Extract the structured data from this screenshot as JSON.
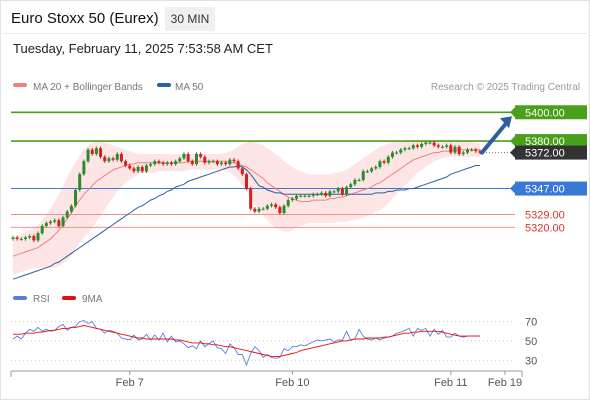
{
  "header": {
    "title": "Euro Stoxx 50 (Eurex)",
    "interval": "30 MIN",
    "datetime": "Tuesday, February 11, 2025 7:53:58 AM CET"
  },
  "legend": {
    "ma20_bb": "MA 20 + Bollinger Bands",
    "ma50": "MA 50",
    "copyright": "Research © 2025 Trading Central"
  },
  "colors": {
    "ma20": "#f08080",
    "bollinger_fill": "#fde0e0",
    "ma50": "#2f5f9e",
    "candle_up": "#2b8a2b",
    "candle_down": "#d02020",
    "resistance": "#4aa01a",
    "support": "#3a78d8",
    "pivot": "#f09090",
    "price_tag": "#333333",
    "arrow": "#2f5f9e",
    "rsi": "#5c7fd6",
    "rsi_ma": "#e01010"
  },
  "chart_data": [
    {
      "type": "candlestick",
      "title": "Euro Stoxx 50 (Eurex)",
      "ylim": [
        5280,
        5412
      ],
      "x_ticks": [
        "Feb 7",
        "Feb 10",
        "Feb 11",
        "Feb 19"
      ],
      "levels": [
        {
          "value": 5400.0,
          "label": "5400.00",
          "kind": "resistance"
        },
        {
          "value": 5380.0,
          "label": "5380.00",
          "kind": "resistance"
        },
        {
          "value": 5372.0,
          "label": "5372.00",
          "kind": "current"
        },
        {
          "value": 5347.0,
          "label": "5347.00",
          "kind": "support"
        },
        {
          "value": 5329.0,
          "label": "5329.00",
          "kind": "pivot"
        },
        {
          "value": 5320.0,
          "label": "5320.00",
          "kind": "pivot"
        }
      ],
      "forecast_target": 5400,
      "close": [
        5313,
        5312,
        5312,
        5313,
        5314,
        5311,
        5316,
        5321,
        5323,
        5324,
        5325,
        5321,
        5327,
        5331,
        5335,
        5346,
        5357,
        5366,
        5374,
        5371,
        5375,
        5369,
        5366,
        5368,
        5367,
        5371,
        5366,
        5363,
        5361,
        5359,
        5362,
        5359,
        5363,
        5364,
        5366,
        5365,
        5364,
        5365,
        5364,
        5366,
        5368,
        5371,
        5366,
        5364,
        5371,
        5369,
        5365,
        5366,
        5366,
        5364,
        5365,
        5364,
        5367,
        5366,
        5361,
        5357,
        5347,
        5333,
        5331,
        5333,
        5333,
        5335,
        5336,
        5334,
        5330,
        5335,
        5339,
        5340,
        5342,
        5342,
        5342,
        5342,
        5343,
        5343,
        5344,
        5342,
        5345,
        5345,
        5347,
        5343,
        5348,
        5350,
        5353,
        5353,
        5359,
        5359,
        5361,
        5362,
        5366,
        5365,
        5369,
        5372,
        5372,
        5374,
        5375,
        5375,
        5377,
        5376,
        5378,
        5379,
        5379,
        5377,
        5376,
        5376,
        5377,
        5372,
        5376,
        5371,
        5372,
        5374,
        5374,
        5373,
        5372
      ],
      "ma20": [
        5300,
        5301,
        5302,
        5303,
        5304,
        5305,
        5306,
        5308,
        5310,
        5312,
        5315,
        5318,
        5322,
        5326,
        5330,
        5335,
        5339,
        5343,
        5346,
        5349,
        5352,
        5354,
        5356,
        5358,
        5360,
        5361,
        5362,
        5363,
        5364,
        5364,
        5365,
        5365,
        5365,
        5365,
        5365,
        5365,
        5365,
        5365,
        5365,
        5365,
        5365,
        5365,
        5366,
        5366,
        5366,
        5366,
        5366,
        5366,
        5366,
        5366,
        5366,
        5366,
        5365,
        5365,
        5364,
        5363,
        5362,
        5360,
        5358,
        5356,
        5354,
        5351,
        5349,
        5347,
        5345,
        5343,
        5341,
        5340,
        5339,
        5338,
        5338,
        5338,
        5339,
        5339,
        5339,
        5339,
        5340,
        5340,
        5341,
        5341,
        5342,
        5343,
        5344,
        5345,
        5346,
        5347,
        5348,
        5350,
        5351,
        5353,
        5355,
        5357,
        5359,
        5361,
        5363,
        5365,
        5367,
        5368,
        5369,
        5370,
        5371,
        5372,
        5372,
        5373,
        5373,
        5373,
        5374,
        5374,
        5374,
        5374,
        5374,
        5374,
        5374
      ],
      "ma50": [
        5284,
        5285,
        5286,
        5287,
        5288,
        5289,
        5290,
        5291,
        5292,
        5293,
        5295,
        5296,
        5298,
        5300,
        5302,
        5304,
        5306,
        5308,
        5310,
        5312,
        5314,
        5316,
        5318,
        5320,
        5322,
        5324,
        5326,
        5328,
        5330,
        5332,
        5334,
        5335,
        5337,
        5339,
        5340,
        5342,
        5343,
        5345,
        5346,
        5348,
        5349,
        5350,
        5352,
        5353,
        5354,
        5355,
        5356,
        5357,
        5358,
        5359,
        5360,
        5361,
        5362,
        5362,
        5363,
        5362,
        5360,
        5357,
        5353,
        5349,
        5348,
        5346,
        5345,
        5344,
        5344,
        5343,
        5343,
        5343,
        5343,
        5343,
        5343,
        5343,
        5343,
        5343,
        5343,
        5343,
        5343,
        5343,
        5343,
        5343,
        5343,
        5343,
        5343,
        5343,
        5343,
        5343,
        5343,
        5344,
        5344,
        5344,
        5345,
        5345,
        5346,
        5346,
        5346,
        5347,
        5347,
        5348,
        5349,
        5350,
        5351,
        5352,
        5353,
        5354,
        5355,
        5357,
        5358,
        5359,
        5360,
        5361,
        5362,
        5363,
        5363
      ],
      "bollinger_upper": [
        5313,
        5314,
        5315,
        5317,
        5318,
        5320,
        5322,
        5325,
        5329,
        5333,
        5338,
        5343,
        5349,
        5355,
        5360,
        5365,
        5370,
        5374,
        5377,
        5379,
        5380,
        5380,
        5379,
        5378,
        5377,
        5376,
        5375,
        5374,
        5373,
        5372,
        5371,
        5371,
        5371,
        5371,
        5371,
        5371,
        5371,
        5371,
        5371,
        5371,
        5371,
        5371,
        5371,
        5371,
        5371,
        5371,
        5371,
        5371,
        5371,
        5371,
        5371,
        5372,
        5373,
        5374,
        5376,
        5378,
        5379,
        5380,
        5379,
        5378,
        5377,
        5375,
        5373,
        5371,
        5369,
        5366,
        5364,
        5362,
        5360,
        5359,
        5358,
        5357,
        5357,
        5357,
        5357,
        5357,
        5357,
        5358,
        5358,
        5359,
        5360,
        5362,
        5364,
        5366,
        5368,
        5370,
        5372,
        5374,
        5376,
        5377,
        5378,
        5379,
        5380,
        5380,
        5381,
        5381,
        5381,
        5381,
        5381,
        5381,
        5381,
        5381,
        5381,
        5381,
        5381,
        5381,
        5381,
        5381,
        5380,
        5380,
        5379,
        5379,
        5378
      ],
      "bollinger_lower": [
        5287,
        5288,
        5289,
        5290,
        5291,
        5292,
        5292,
        5292,
        5292,
        5292,
        5292,
        5293,
        5295,
        5297,
        5300,
        5305,
        5309,
        5313,
        5316,
        5320,
        5324,
        5328,
        5332,
        5337,
        5341,
        5345,
        5348,
        5351,
        5353,
        5355,
        5357,
        5358,
        5358,
        5358,
        5358,
        5359,
        5359,
        5359,
        5359,
        5359,
        5359,
        5359,
        5360,
        5360,
        5360,
        5360,
        5360,
        5360,
        5360,
        5360,
        5360,
        5359,
        5358,
        5356,
        5353,
        5349,
        5345,
        5340,
        5336,
        5332,
        5328,
        5325,
        5322,
        5320,
        5318,
        5317,
        5317,
        5318,
        5320,
        5321,
        5322,
        5323,
        5323,
        5323,
        5323,
        5323,
        5323,
        5323,
        5324,
        5324,
        5324,
        5325,
        5325,
        5326,
        5327,
        5328,
        5329,
        5331,
        5332,
        5334,
        5337,
        5340,
        5343,
        5346,
        5349,
        5352,
        5355,
        5358,
        5360,
        5362,
        5364,
        5366,
        5367,
        5368,
        5369,
        5369,
        5369,
        5369,
        5369,
        5369,
        5369,
        5369,
        5369
      ]
    },
    {
      "type": "line",
      "title": "RSI",
      "ylim": [
        22,
        82
      ],
      "y_ticks": [
        70,
        50,
        30
      ],
      "series": [
        {
          "name": "RSI",
          "values": [
            52,
            55,
            52,
            58,
            62,
            60,
            64,
            60,
            62,
            60,
            61,
            65,
            67,
            61,
            64,
            65,
            70,
            71,
            68,
            70,
            63,
            62,
            58,
            61,
            60,
            58,
            53,
            52,
            51,
            56,
            51,
            52,
            57,
            51,
            56,
            51,
            58,
            49,
            55,
            49,
            50,
            47,
            43,
            45,
            42,
            50,
            44,
            47,
            50,
            43,
            42,
            37,
            47,
            43,
            36,
            36,
            25,
            37,
            44,
            40,
            33,
            36,
            33,
            32,
            33,
            42,
            40,
            44,
            44,
            46,
            45,
            47,
            49,
            51,
            50,
            51,
            52,
            49,
            51,
            51,
            60,
            51,
            52,
            62,
            55,
            52,
            51,
            53,
            51,
            53,
            54,
            55,
            58,
            59,
            61,
            63,
            55,
            63,
            61,
            63,
            55,
            62,
            57,
            61,
            54,
            54,
            58,
            55,
            54,
            55,
            55,
            55,
            55
          ]
        },
        {
          "name": "9MA",
          "values": [
            57,
            57,
            57,
            58,
            58,
            58,
            59,
            59,
            60,
            61,
            61,
            62,
            63,
            63,
            64,
            64,
            65,
            66,
            65,
            64,
            63,
            62,
            61,
            60,
            59,
            58,
            57,
            56,
            55,
            54,
            53,
            53,
            52,
            52,
            52,
            52,
            52,
            52,
            52,
            51,
            51,
            50,
            49,
            48,
            48,
            48,
            47,
            47,
            46,
            46,
            45,
            44,
            44,
            43,
            42,
            41,
            40,
            39,
            38,
            37,
            36,
            35,
            34,
            34,
            34,
            35,
            36,
            37,
            38,
            40,
            41,
            42,
            43,
            44,
            45,
            46,
            47,
            48,
            49,
            50,
            50,
            51,
            52,
            52,
            52,
            53,
            53,
            53,
            53,
            54,
            54,
            55,
            56,
            57,
            58,
            58,
            59,
            59,
            60,
            60,
            60,
            60,
            60,
            59,
            58,
            57,
            56,
            55,
            55,
            55,
            55,
            55,
            55
          ]
        }
      ]
    }
  ],
  "rsi_legend": {
    "rsi": "RSI",
    "ma9": "9MA"
  }
}
